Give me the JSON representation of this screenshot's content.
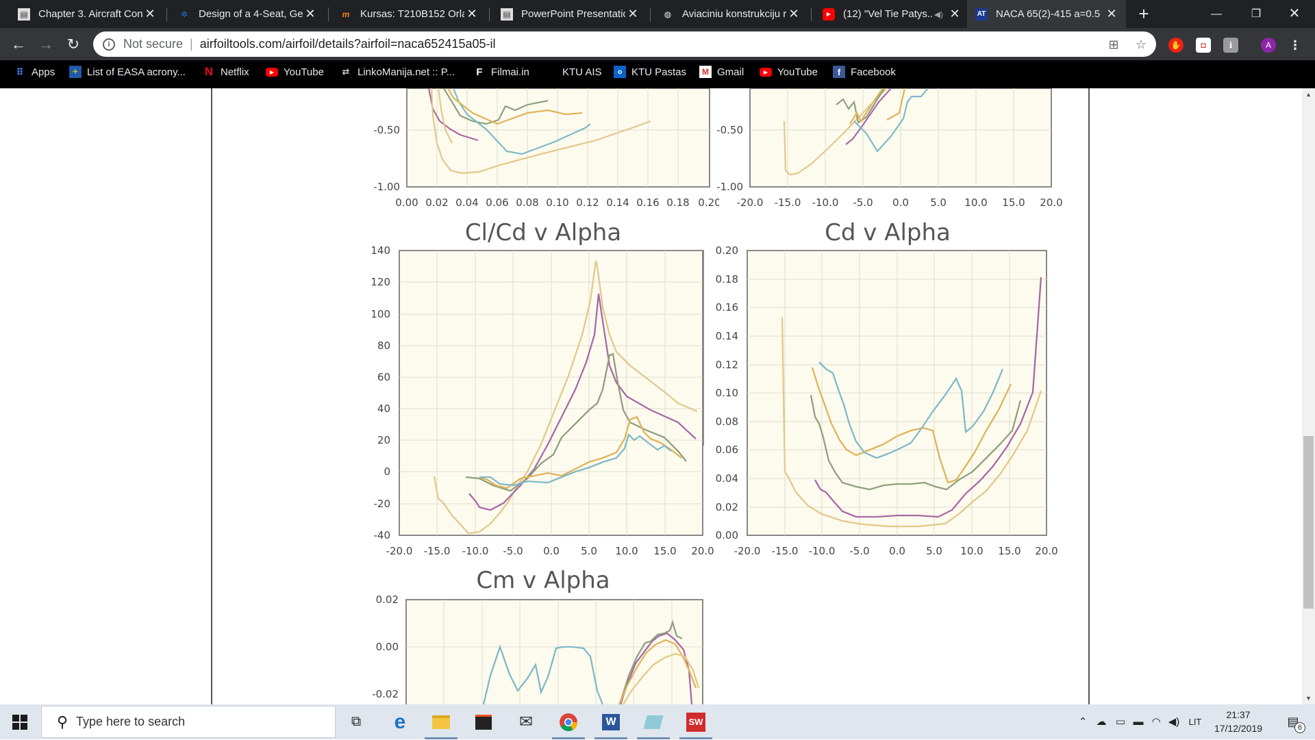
{
  "browser": {
    "tabs": [
      {
        "title": "Chapter 3. Aircraft Con",
        "icon": "document-icon",
        "active": false
      },
      {
        "title": "Design of a 4-Seat, Ger",
        "icon": "gear-icon",
        "active": false
      },
      {
        "title": "Kursas: T210B152 Orlai",
        "icon": "moodle-icon",
        "active": false
      },
      {
        "title": "PowerPoint Presentatic",
        "icon": "document-icon",
        "active": false
      },
      {
        "title": "Aviaciniu konstrukciju r",
        "icon": "globe-icon",
        "active": false
      },
      {
        "title": "(12) \"Vel Tie Patys..",
        "icon": "youtube-icon",
        "active": false,
        "audio": true
      },
      {
        "title": "NACA 65(2)-415 a=0.5",
        "icon": "airfoiltools-icon",
        "active": true
      }
    ],
    "new_tab": "+",
    "security_label": "Not secure",
    "url": "airfoiltools.com/airfoil/details?airfoil=naca652415a05-il",
    "profile_initial": "A",
    "bookmarks": [
      {
        "label": "Apps",
        "icon": "apps-icon"
      },
      {
        "label": "List of EASA acrony...",
        "icon": "easa-icon"
      },
      {
        "label": "Netflix",
        "icon": "netflix-icon"
      },
      {
        "label": "YouTube",
        "icon": "youtube-icon"
      },
      {
        "label": "LinkoManija.net :: P...",
        "icon": "linkomanija-icon"
      },
      {
        "label": "Filmai.in",
        "icon": "filmai-icon"
      },
      {
        "label": "KTU AIS",
        "icon": "blank-icon"
      },
      {
        "label": "KTU Pastas",
        "icon": "outlook-icon"
      },
      {
        "label": "Gmail",
        "icon": "gmail-icon"
      },
      {
        "label": "YouTube",
        "icon": "youtube-icon"
      },
      {
        "label": "Facebook",
        "icon": "facebook-icon"
      }
    ]
  },
  "series_colors": {
    "blue": "#7fb9c8",
    "green": "#8fa07c",
    "orange": "#e0b35a",
    "purple": "#a868a8",
    "tan": "#e2c88a"
  },
  "charts": {
    "cl_cd_partial": {
      "yticks": [
        "-0.50",
        "-1.00"
      ],
      "xticks": [
        "0.00",
        "0.02",
        "0.04",
        "0.06",
        "0.08",
        "0.10",
        "0.12",
        "0.14",
        "0.16",
        "0.18",
        "0.20"
      ]
    },
    "cl_alpha_partial": {
      "yticks": [
        "-0.50",
        "-1.00"
      ],
      "xticks": [
        "-20.0",
        "-15.0",
        "-10.0",
        "-5.0",
        "0.0",
        "5.0",
        "10.0",
        "15.0",
        "20.0"
      ]
    },
    "clcd_alpha": {
      "title": "Cl/Cd v Alpha",
      "yticks": [
        "140",
        "120",
        "100",
        "80",
        "60",
        "40",
        "20",
        "0",
        "-20",
        "-40"
      ],
      "xticks": [
        "-20.0",
        "-15.0",
        "-10.0",
        "-5.0",
        "0.0",
        "5.0",
        "10.0",
        "15.0",
        "20.0"
      ]
    },
    "cd_alpha": {
      "title": "Cd v Alpha",
      "yticks": [
        "0.20",
        "0.18",
        "0.16",
        "0.14",
        "0.12",
        "0.10",
        "0.08",
        "0.06",
        "0.04",
        "0.02",
        "0.00"
      ],
      "xticks": [
        "-20.0",
        "-15.0",
        "-10.0",
        "-5.0",
        "0.0",
        "5.0",
        "10.0",
        "15.0",
        "20.0"
      ]
    },
    "cm_alpha": {
      "title": "Cm v Alpha",
      "yticks": [
        "0.02",
        "0.00",
        "-0.02"
      ]
    }
  },
  "taskbar": {
    "search_placeholder": "Type here to search",
    "language": "LIT",
    "time": "21:37",
    "date": "17/12/2019",
    "notification_count": "6"
  }
}
